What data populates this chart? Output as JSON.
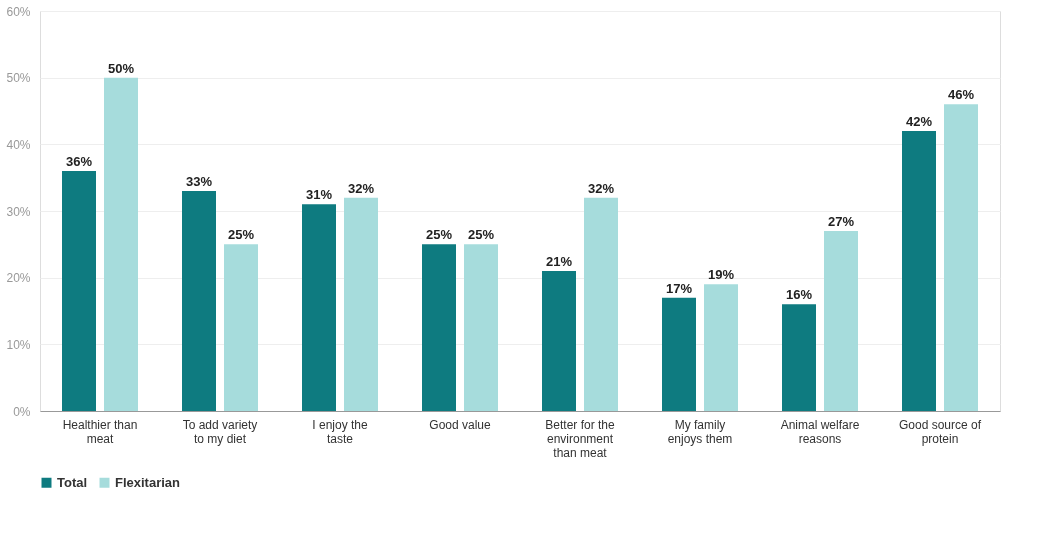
{
  "chart_data": {
    "type": "bar",
    "categories": [
      "Healthier than meat",
      "To add variety to my diet",
      "I enjoy the taste",
      "Good value",
      "Better for the environment than meat",
      "My family enjoys them",
      "Animal welfare reasons",
      "Good source of protein"
    ],
    "series": [
      {
        "name": "Total",
        "color": "#0e7b80",
        "values": [
          36,
          33,
          31,
          25,
          21,
          17,
          16,
          42
        ],
        "value_labels": [
          "36%",
          "33%",
          "31%",
          "25%",
          "21%",
          "17%",
          "16%",
          "42%"
        ]
      },
      {
        "name": "Flexitarian",
        "color": "#a6dcdc",
        "values": [
          50,
          25,
          32,
          25,
          32,
          19,
          27,
          46
        ],
        "value_labels": [
          "50%",
          "25%",
          "32%",
          "25%",
          "32%",
          "19%",
          "27%",
          "46%"
        ]
      }
    ],
    "ylim": [
      0,
      60
    ],
    "yticks": [
      {
        "value": 0,
        "label": "0%"
      },
      {
        "value": 10,
        "label": "10%"
      },
      {
        "value": 20,
        "label": "20%"
      },
      {
        "value": 30,
        "label": "30%"
      },
      {
        "value": 40,
        "label": "40%"
      },
      {
        "value": 50,
        "label": "50%"
      },
      {
        "value": 60,
        "label": "60%"
      }
    ],
    "grid": "y",
    "legend": "bottom"
  }
}
